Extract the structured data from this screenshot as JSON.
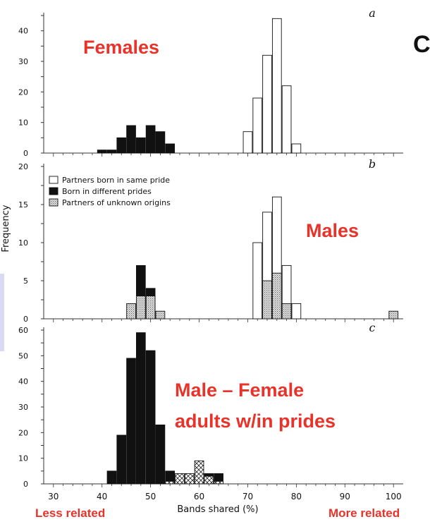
{
  "overlay": {
    "females": "Females",
    "males": "Males",
    "male_female_line1": "Male – Female",
    "male_female_line2": "adults w/in prides",
    "less_related": "Less related",
    "more_related": "More related",
    "cutoff_char": "C"
  },
  "chart_data": [
    {
      "type": "bar",
      "panel_label": "a",
      "xlim": [
        28,
        102
      ],
      "ylim": [
        0,
        45
      ],
      "yticks": [
        0,
        10,
        20,
        30,
        40
      ],
      "bin_width": 2,
      "series": [
        {
          "style": "open",
          "x": [
            70,
            72,
            74,
            76,
            78,
            80
          ],
          "values": [
            7,
            18,
            32,
            44,
            22,
            3
          ]
        },
        {
          "style": "black",
          "x": [
            40,
            42,
            44,
            46,
            48,
            50,
            52,
            54
          ],
          "values": [
            1,
            1,
            5,
            9,
            5,
            9,
            7,
            3
          ]
        }
      ]
    },
    {
      "type": "bar",
      "panel_label": "b",
      "ylabel": "Frequency",
      "xlim": [
        28,
        102
      ],
      "ylim": [
        0,
        20
      ],
      "yticks": [
        0,
        5,
        10,
        15,
        20
      ],
      "bin_width": 2,
      "legend": {
        "placement": "top-left",
        "entries": [
          {
            "style": "open",
            "label": "Partners born in same pride"
          },
          {
            "style": "black",
            "label": "Born in different prides"
          },
          {
            "style": "hatched",
            "label": "Partners of unknown origins"
          }
        ]
      },
      "series": [
        {
          "style": "open",
          "x": [
            72,
            74,
            76,
            78,
            80
          ],
          "values": [
            10,
            14,
            16,
            7,
            2
          ]
        },
        {
          "style": "black",
          "x": [
            48,
            50
          ],
          "values": [
            7,
            4
          ]
        },
        {
          "style": "hatched",
          "x": [
            46,
            48,
            50,
            52,
            74,
            76,
            78,
            100
          ],
          "values": [
            2,
            3,
            3,
            1,
            5,
            6,
            2,
            1
          ]
        }
      ]
    },
    {
      "type": "bar",
      "panel_label": "c",
      "xlabel": "Bands shared (%)",
      "xlim": [
        28,
        102
      ],
      "ylim": [
        0,
        60
      ],
      "yticks": [
        0,
        10,
        20,
        30,
        40,
        50,
        60
      ],
      "xticks": [
        30,
        40,
        50,
        60,
        70,
        80,
        90,
        100
      ],
      "bin_width": 2,
      "series": [
        {
          "style": "black",
          "x": [
            42,
            44,
            46,
            48,
            50,
            52,
            54,
            62,
            64
          ],
          "values": [
            5,
            19,
            49,
            59,
            52,
            23,
            5,
            4,
            4
          ]
        },
        {
          "style": "crosshatch",
          "x": [
            54,
            56,
            58,
            60,
            62,
            64
          ],
          "values": [
            1,
            4,
            4,
            9,
            3,
            1
          ]
        }
      ]
    }
  ]
}
